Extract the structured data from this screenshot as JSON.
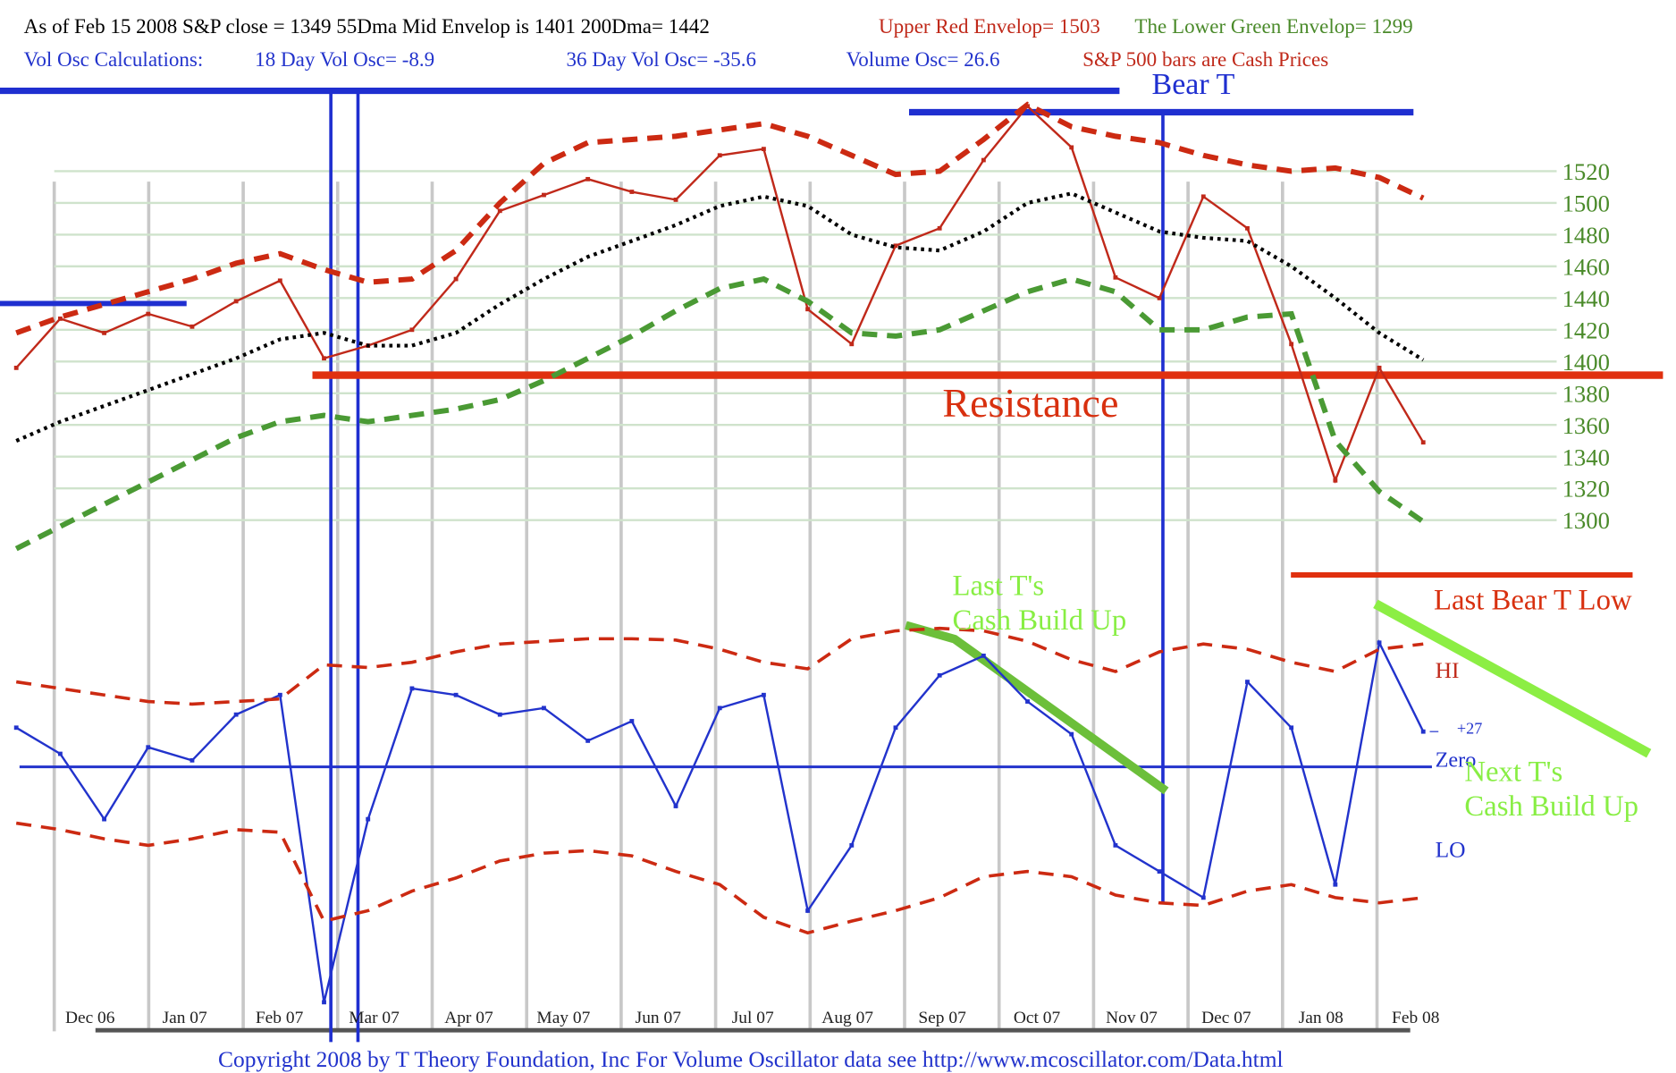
{
  "header": {
    "line1": [
      {
        "text": "As of Feb 15  2008  S&P close = 1349    55Dma Mid Envelop is  1401     200Dma=  1442",
        "color": "#000000"
      },
      {
        "text": "Upper Red Envelop= 1503",
        "color": "#c0291a"
      },
      {
        "text": "The Lower Green Envelop=  1299",
        "color": "#4a8a2a"
      }
    ],
    "line2": [
      {
        "text": "Vol Osc Calculations:",
        "color": "#2233cc"
      },
      {
        "text": "18 Day Vol Osc= -8.9",
        "color": "#2233cc"
      },
      {
        "text": "36 Day Vol Osc= -35.6",
        "color": "#2233cc"
      },
      {
        "text": "Volume Osc=  26.6",
        "color": "#2233cc"
      },
      {
        "text": "S&P 500 bars are Cash Prices",
        "color": "#c0291a"
      }
    ]
  },
  "months": [
    "Dec 06",
    "Jan 07",
    "Feb 07",
    "Mar 07",
    "Apr 07",
    "May 07",
    "Jun 07",
    "Jul 07",
    "Aug 07",
    "Sep 07",
    "Oct 07",
    "Nov 07",
    "Dec 07",
    "Jan 08",
    "Feb 08"
  ],
  "chart_data": [
    {
      "type": "line",
      "ylim": [
        1260,
        1570
      ],
      "yticks": [
        1300,
        1320,
        1340,
        1360,
        1380,
        1400,
        1420,
        1440,
        1460,
        1480,
        1500,
        1520
      ],
      "grid": true,
      "annotations": [
        "Bear T",
        "Resistance",
        "Last Bear T Low"
      ],
      "series": [
        {
          "color": "#c0291a",
          "style": "solid",
          "values": [
            1396,
            1427,
            1418,
            1430,
            1422,
            1438,
            1451,
            1402,
            1410,
            1420,
            1452,
            1495,
            1505,
            1515,
            1507,
            1502,
            1530,
            1534,
            1433,
            1411,
            1473,
            1484,
            1527,
            1561,
            1535,
            1453,
            1440,
            1504,
            1484,
            1411,
            1325,
            1396,
            1349
          ]
        },
        {
          "color": "#cc2a12",
          "style": "dashed",
          "values": [
            1418,
            1428,
            1436,
            1444,
            1452,
            1462,
            1468,
            1458,
            1450,
            1452,
            1470,
            1500,
            1525,
            1538,
            1540,
            1542,
            1546,
            1550,
            1542,
            1530,
            1518,
            1520,
            1540,
            1562,
            1548,
            1542,
            1538,
            1530,
            1524,
            1520,
            1522,
            1516,
            1503
          ]
        },
        {
          "color": "#000000",
          "style": "dotted",
          "values": [
            1350,
            1362,
            1372,
            1382,
            1392,
            1402,
            1414,
            1418,
            1410,
            1410,
            1418,
            1436,
            1452,
            1466,
            1476,
            1486,
            1498,
            1504,
            1498,
            1480,
            1472,
            1470,
            1482,
            1500,
            1506,
            1494,
            1482,
            1478,
            1476,
            1460,
            1440,
            1418,
            1401
          ]
        },
        {
          "color": "#4a9a34",
          "style": "dashed",
          "values": [
            1282,
            1296,
            1310,
            1324,
            1338,
            1352,
            1362,
            1366,
            1362,
            1366,
            1370,
            1376,
            1388,
            1402,
            1416,
            1432,
            1446,
            1452,
            1438,
            1418,
            1416,
            1420,
            1432,
            1444,
            1452,
            1444,
            1420,
            1420,
            1428,
            1430,
            1350,
            1318,
            1299
          ]
        }
      ]
    },
    {
      "type": "line",
      "ylim": [
        -190,
        110
      ],
      "yticks": [
        {
          "value": 27,
          "label": "+27"
        },
        {
          "value": 0,
          "label": "Zero"
        }
      ],
      "annotations": [
        "Last T's",
        "Cash Build Up",
        "Next T's",
        "Cash Build Up",
        "HI",
        "LO"
      ],
      "series": [
        {
          "color": "#2233cc",
          "style": "solid",
          "values": [
            30,
            10,
            -40,
            15,
            5,
            40,
            55,
            -180,
            -40,
            60,
            55,
            40,
            45,
            20,
            35,
            -30,
            45,
            55,
            -110,
            -60,
            30,
            70,
            85,
            50,
            25,
            -60,
            -80,
            -100,
            65,
            30,
            -90,
            95,
            27
          ]
        },
        {
          "color": "#cc2a12",
          "style": "dashed",
          "values": [
            65,
            60,
            55,
            50,
            48,
            50,
            52,
            78,
            76,
            80,
            88,
            94,
            96,
            98,
            98,
            97,
            90,
            80,
            75,
            98,
            104,
            106,
            104,
            96,
            82,
            73,
            88,
            94,
            90,
            80,
            73,
            90,
            94
          ]
        },
        {
          "color": "#cc2a12",
          "style": "dashed",
          "values": [
            -43,
            -48,
            -55,
            -60,
            -55,
            -48,
            -50,
            -118,
            -110,
            -95,
            -85,
            -72,
            -66,
            -64,
            -68,
            -80,
            -90,
            -115,
            -127,
            -118,
            -110,
            -100,
            -84,
            -80,
            -84,
            -98,
            -104,
            -106,
            -95,
            -90,
            -100,
            -104,
            -100
          ]
        }
      ]
    }
  ],
  "footer": "Copyright 2008 by T Theory Foundation, Inc  For Volume Oscillator data see http://www.mcoscillator.com/Data.html"
}
